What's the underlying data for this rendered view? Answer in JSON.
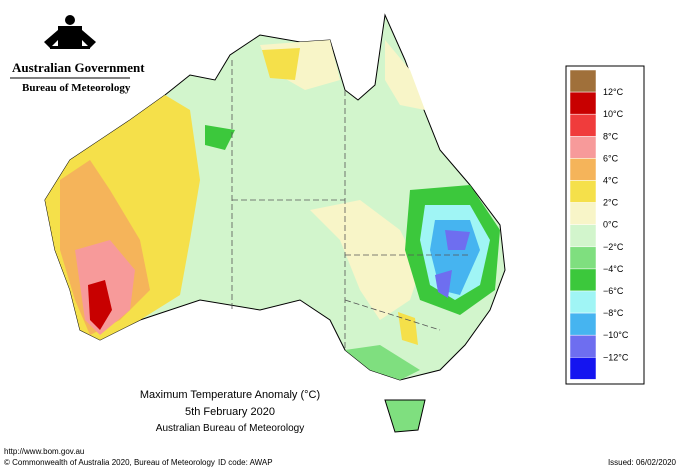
{
  "header": {
    "agency": "Australian Government",
    "bureau": "Bureau of Meteorology"
  },
  "map": {
    "title": "Maximum Temperature Anomaly (°C)",
    "date": "5th February 2020",
    "source": "Australian Bureau of Meteorology"
  },
  "legend": {
    "colors": [
      "#a0703a",
      "#c80000",
      "#f03c3c",
      "#f79a9a",
      "#f5b45a",
      "#f5e04a",
      "#f8f5c8",
      "#d2f5cc",
      "#7fdf7f",
      "#3cc83c",
      "#a0f5f5",
      "#46b4f0",
      "#6e6ef0",
      "#1414f0"
    ],
    "labels": [
      "12°C",
      "10°C",
      "8°C",
      "6°C",
      "4°C",
      "2°C",
      "0°C",
      "−2°C",
      "−4°C",
      "−6°C",
      "−8°C",
      "−10°C",
      "−12°C"
    ]
  },
  "footer": {
    "url": "http://www.bom.gov.au",
    "copyright": "© Commonwealth of Australia 2020, Bureau of Meteorology",
    "id_code": "ID code: AWAP",
    "issued": "Issued: 06/02/2020"
  }
}
